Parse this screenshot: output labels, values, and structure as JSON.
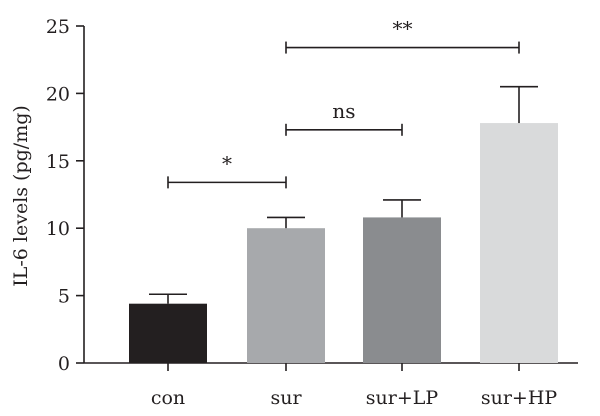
{
  "chart_data": {
    "type": "bar",
    "ylabel": "IL-6 levels (pg/mg)",
    "xlabel": "",
    "ylim": [
      0,
      25
    ],
    "yticks": [
      0,
      5,
      10,
      15,
      20,
      25
    ],
    "categories": [
      "con",
      "sur",
      "sur+LP",
      "sur+HP"
    ],
    "values": [
      4.4,
      10.0,
      10.8,
      17.8
    ],
    "errors": [
      0.7,
      0.8,
      1.3,
      2.7
    ],
    "colors": [
      "#231f20",
      "#a7a9ac",
      "#8a8c8f",
      "#d9dadb"
    ],
    "grid": false,
    "comparisons": [
      {
        "from": 0,
        "to": 1,
        "y": 13.4,
        "label": "*"
      },
      {
        "from": 1,
        "to": 2,
        "y": 17.3,
        "label": "ns"
      },
      {
        "from": 1,
        "to": 3,
        "y": 23.4,
        "label": "**"
      }
    ]
  }
}
